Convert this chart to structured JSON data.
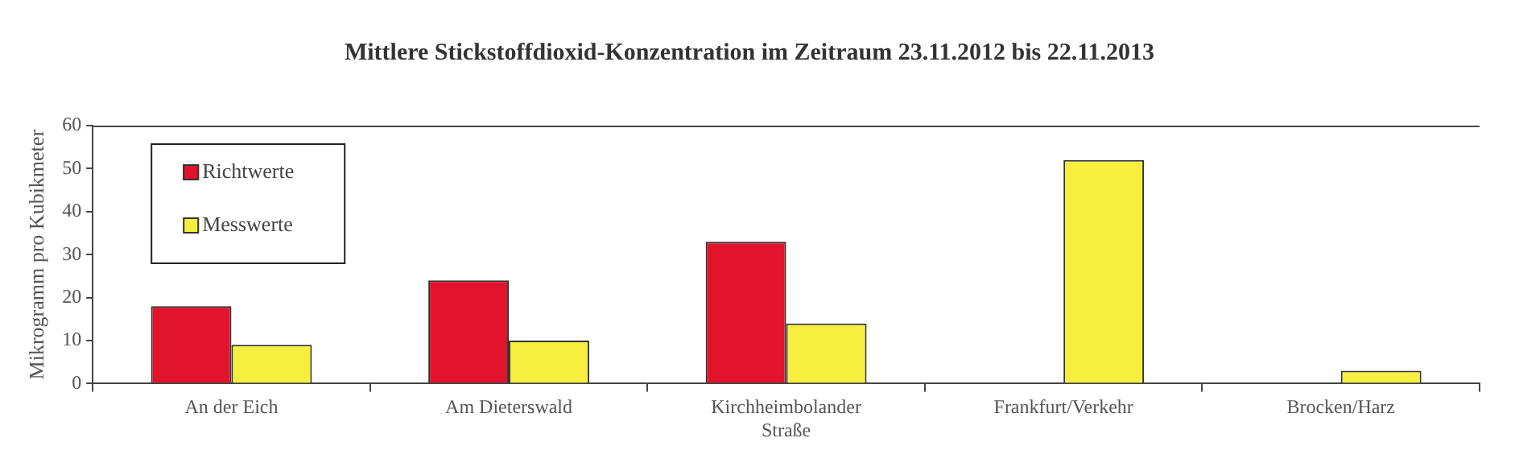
{
  "chart_data": {
    "type": "bar",
    "title": "Mittlere Stickstoffdioxid-Konzentration im Zeitraum 23.11.2012 bis 22.11.2013",
    "ylabel": "Mikrogramm pro Kubikmeter",
    "categories": [
      "An der Eich",
      "Am Dieterswald",
      "Kirchheimbolander Straße",
      "Frankfurt/Verkehr",
      "Brocken/Harz"
    ],
    "series": [
      {
        "name": "Richtwerte",
        "color": "#e2132c",
        "values": [
          18,
          24,
          33,
          null,
          null
        ]
      },
      {
        "name": "Messwerte",
        "color": "#f6ef3f",
        "values": [
          9,
          10,
          14,
          52,
          3
        ]
      }
    ],
    "ylim": [
      0,
      60
    ],
    "yticks": [
      0,
      10,
      20,
      30,
      40,
      50,
      60
    ],
    "legend": "top left"
  }
}
